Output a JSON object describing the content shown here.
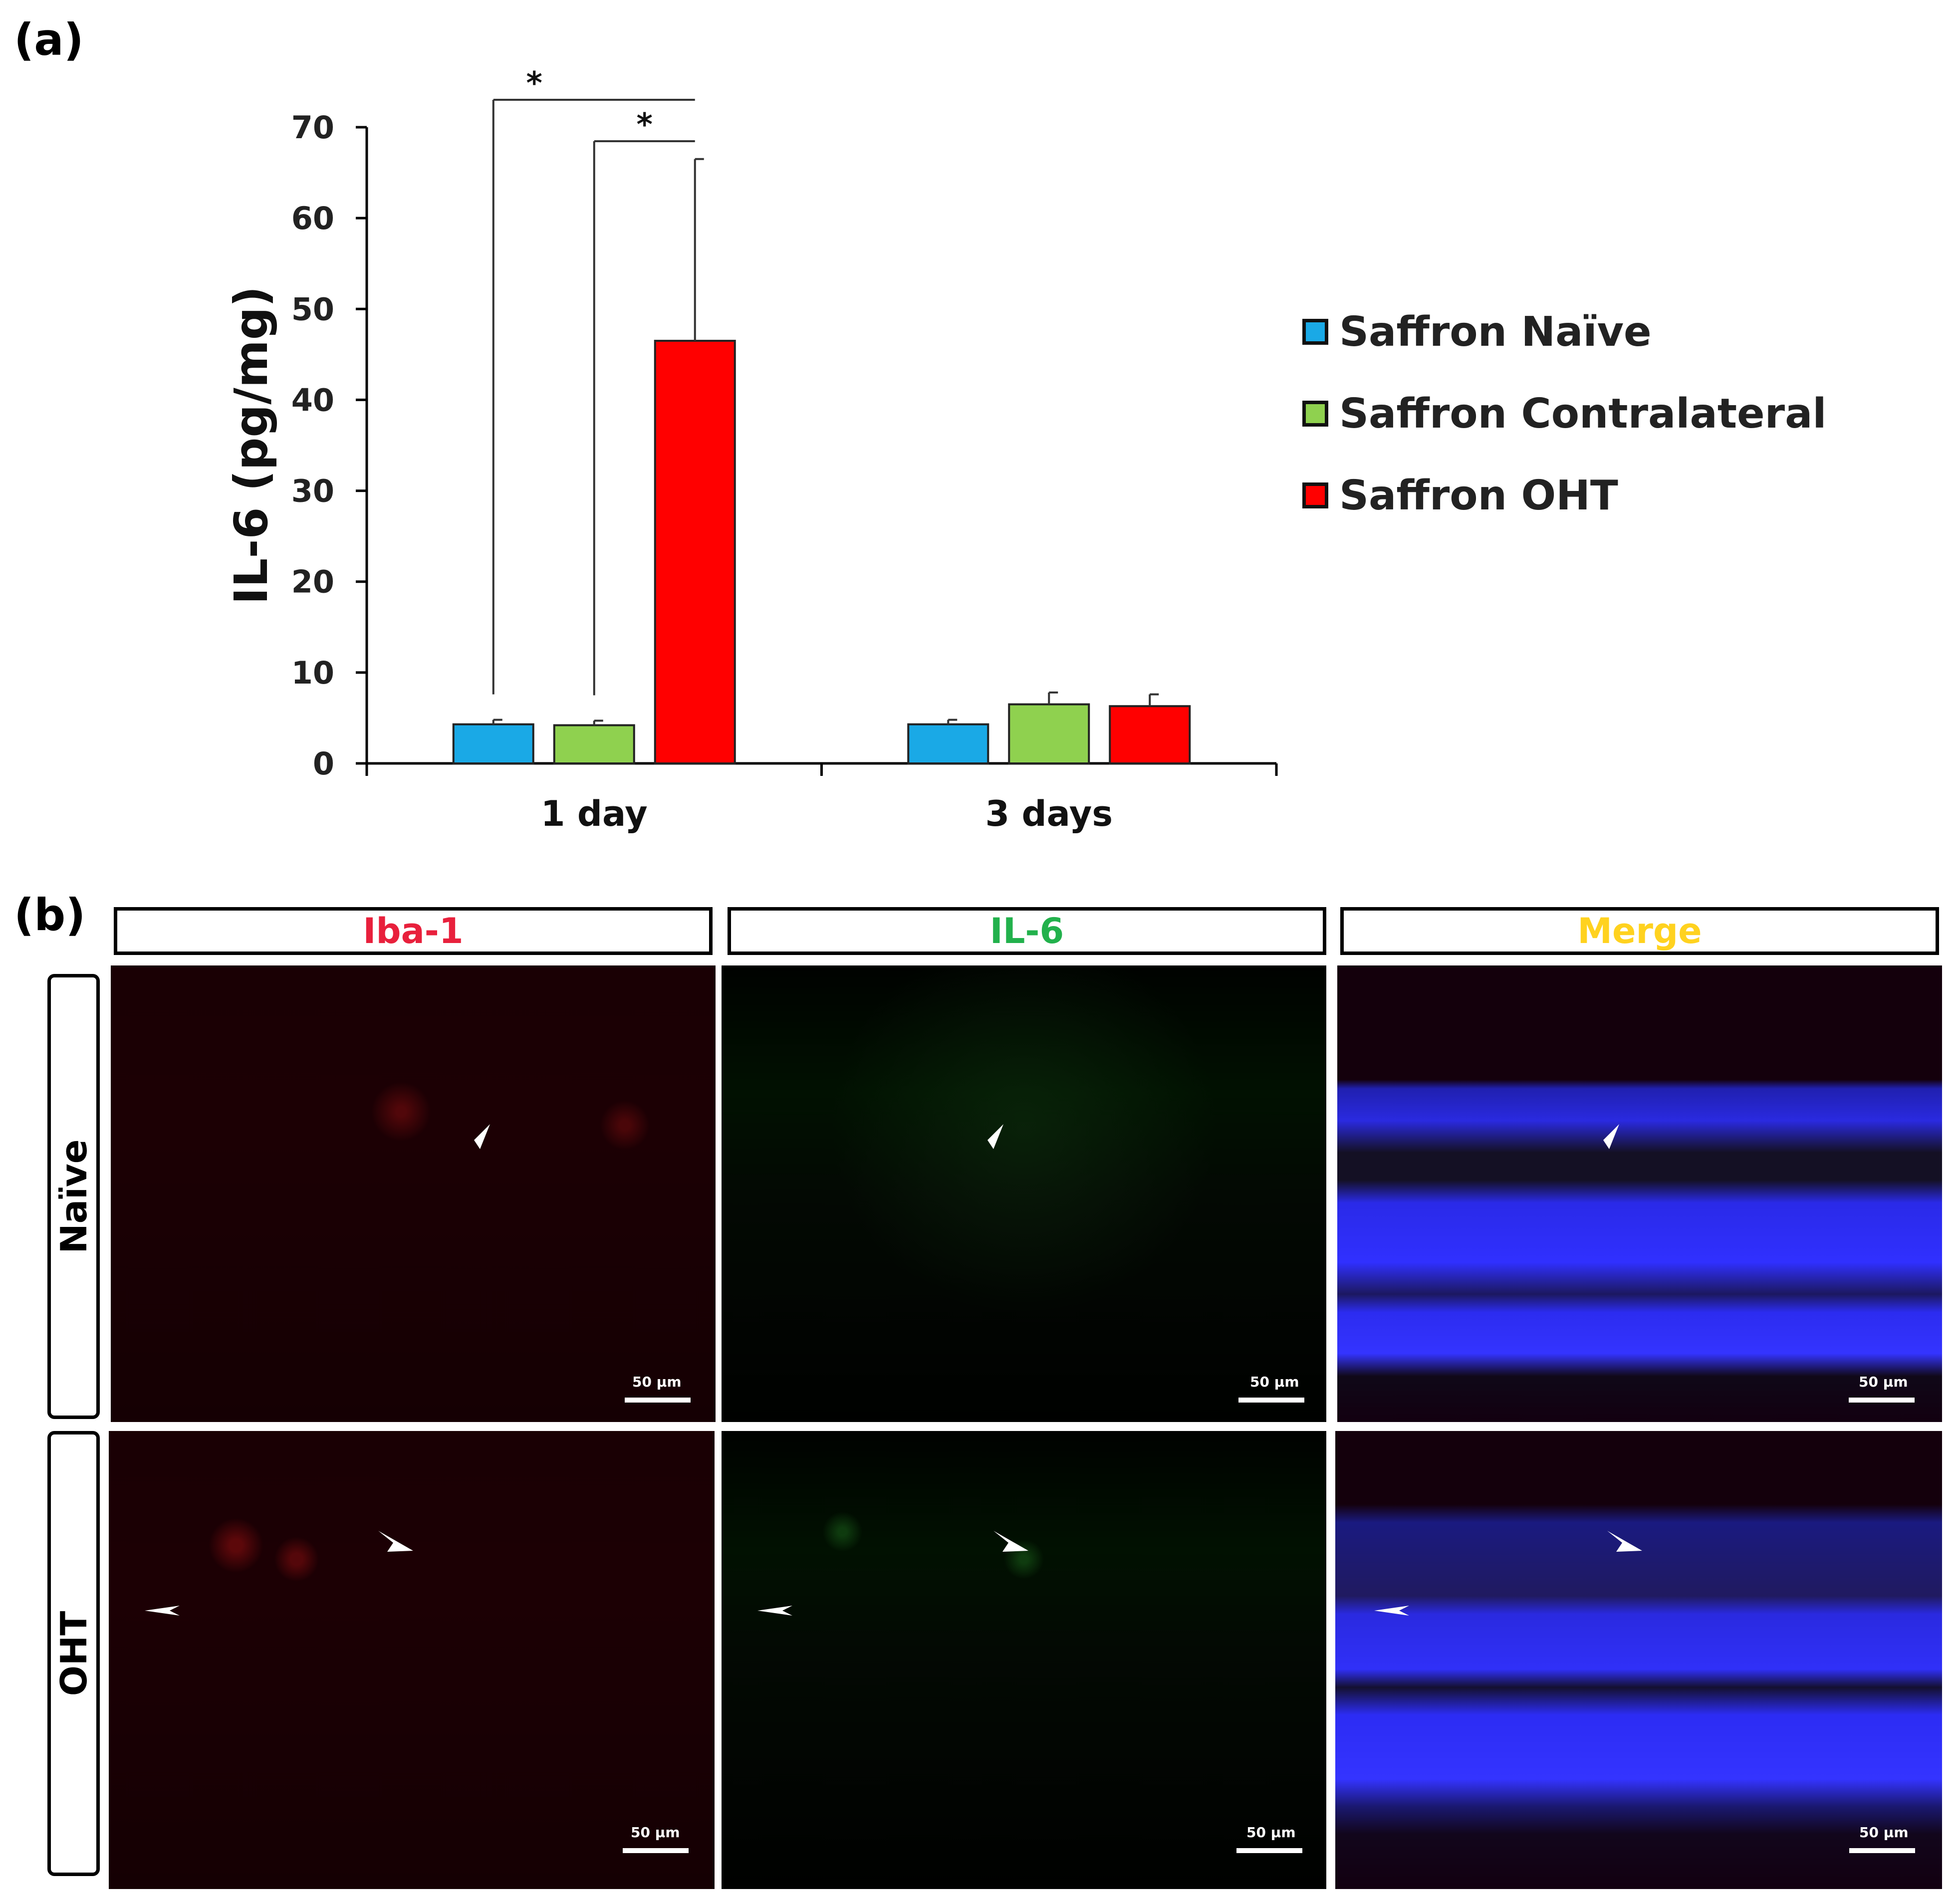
{
  "panel_a_label": "(a)",
  "panel_b_label": "(b)",
  "chart_data": {
    "type": "bar",
    "categories": [
      "1 day",
      "3 days"
    ],
    "series": [
      {
        "name": "Saffron Naïve",
        "color": "#1aa9e6",
        "values": [
          4.3,
          4.3
        ],
        "errors": [
          0.5,
          0.5
        ]
      },
      {
        "name": "Saffron Contralateral",
        "color": "#8fd14f",
        "values": [
          4.2,
          6.5
        ],
        "errors": [
          0.5,
          1.3
        ]
      },
      {
        "name": "Saffron OHT",
        "color": "#ff0000",
        "values": [
          46.5,
          6.3
        ],
        "errors": [
          20.0,
          1.3
        ]
      }
    ],
    "ylabel": "IL-6 (pg/mg)",
    "ylim": [
      0,
      70
    ],
    "yticks": [
      0,
      10,
      20,
      30,
      40,
      50,
      60,
      70
    ],
    "legend_position": "right",
    "grid": false,
    "significance": [
      {
        "category": "1 day",
        "from_series": 0,
        "to_series": 2,
        "label": "*"
      },
      {
        "category": "1 day",
        "from_series": 1,
        "to_series": 2,
        "label": "*"
      }
    ]
  },
  "micrographs": {
    "columns": [
      {
        "label": "Iba-1",
        "color": "#e8203c"
      },
      {
        "label": "IL-6",
        "color": "#22b14c"
      },
      {
        "label": "Merge",
        "color": "#ffd21f"
      }
    ],
    "rows": [
      {
        "label": "Naïve"
      },
      {
        "label": "OHT"
      }
    ],
    "scale_bar_label": "50 µm"
  }
}
